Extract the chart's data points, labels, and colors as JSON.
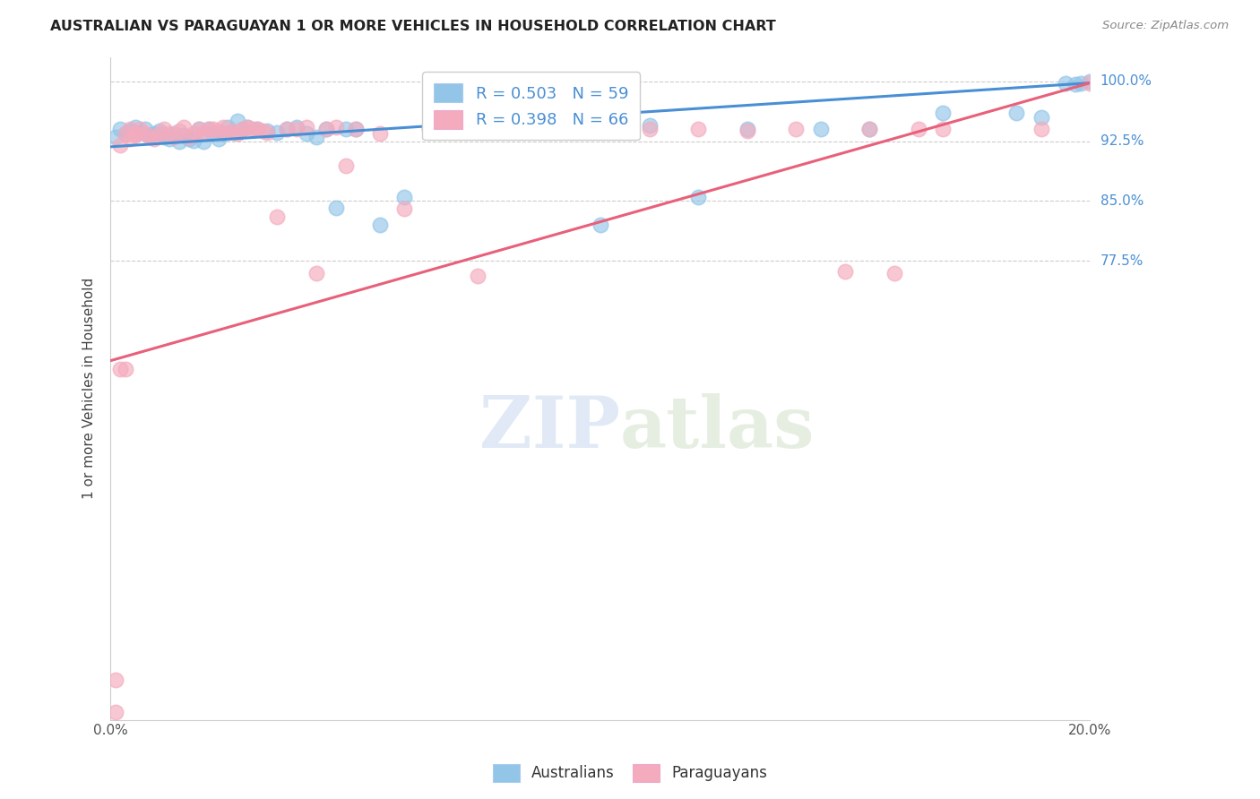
{
  "title": "AUSTRALIAN VS PARAGUAYAN 1 OR MORE VEHICLES IN HOUSEHOLD CORRELATION CHART",
  "source": "Source: ZipAtlas.com",
  "ylabel": "1 or more Vehicles in Household",
  "ytick_labels": [
    "100.0%",
    "92.5%",
    "85.0%",
    "77.5%"
  ],
  "ytick_values": [
    1.0,
    0.925,
    0.85,
    0.775
  ],
  "xmin": 0.0,
  "xmax": 0.2,
  "ymin": 0.2,
  "ymax": 1.03,
  "R_aus": 0.503,
  "N_aus": 59,
  "R_par": 0.398,
  "N_par": 66,
  "aus_color": "#92C5E8",
  "par_color": "#F4ABBE",
  "aus_line_color": "#4A8FD4",
  "par_line_color": "#E8607A",
  "legend_R_color": "#4A8FD4",
  "watermark_zip": "ZIP",
  "watermark_atlas": "atlas",
  "aus_x": [
    0.001,
    0.002,
    0.003,
    0.004,
    0.005,
    0.006,
    0.007,
    0.008,
    0.009,
    0.01,
    0.011,
    0.012,
    0.013,
    0.014,
    0.015,
    0.016,
    0.017,
    0.018,
    0.019,
    0.02,
    0.021,
    0.022,
    0.023,
    0.024,
    0.025,
    0.026,
    0.027,
    0.028,
    0.03,
    0.032,
    0.034,
    0.036,
    0.038,
    0.04,
    0.042,
    0.044,
    0.046,
    0.048,
    0.05,
    0.055,
    0.06,
    0.065,
    0.07,
    0.085,
    0.09,
    0.095,
    0.1,
    0.11,
    0.12,
    0.13,
    0.145,
    0.155,
    0.17,
    0.185,
    0.19,
    0.195,
    0.197,
    0.198,
    0.2
  ],
  "aus_y": [
    0.93,
    0.94,
    0.935,
    0.938,
    0.942,
    0.936,
    0.94,
    0.932,
    0.935,
    0.938,
    0.93,
    0.928,
    0.935,
    0.925,
    0.932,
    0.928,
    0.926,
    0.94,
    0.925,
    0.94,
    0.935,
    0.928,
    0.935,
    0.942,
    0.936,
    0.95,
    0.94,
    0.942,
    0.94,
    0.938,
    0.936,
    0.94,
    0.942,
    0.935,
    0.93,
    0.94,
    0.842,
    0.94,
    0.94,
    0.82,
    0.855,
    0.94,
    0.94,
    0.945,
    0.94,
    0.94,
    0.82,
    0.945,
    0.855,
    0.94,
    0.94,
    0.94,
    0.96,
    0.96,
    0.955,
    0.998,
    0.996,
    0.998,
    1.0
  ],
  "par_x": [
    0.001,
    0.001,
    0.002,
    0.002,
    0.003,
    0.003,
    0.004,
    0.004,
    0.005,
    0.005,
    0.006,
    0.007,
    0.008,
    0.009,
    0.01,
    0.011,
    0.012,
    0.013,
    0.014,
    0.015,
    0.016,
    0.017,
    0.018,
    0.019,
    0.02,
    0.021,
    0.022,
    0.023,
    0.024,
    0.025,
    0.026,
    0.027,
    0.028,
    0.029,
    0.03,
    0.031,
    0.032,
    0.034,
    0.036,
    0.038,
    0.04,
    0.042,
    0.044,
    0.046,
    0.048,
    0.05,
    0.055,
    0.06,
    0.065,
    0.07,
    0.075,
    0.08,
    0.09,
    0.095,
    0.1,
    0.11,
    0.12,
    0.13,
    0.14,
    0.15,
    0.155,
    0.16,
    0.165,
    0.17,
    0.19,
    0.2
  ],
  "par_y": [
    0.21,
    0.25,
    0.64,
    0.92,
    0.64,
    0.935,
    0.928,
    0.94,
    0.932,
    0.935,
    0.94,
    0.935,
    0.93,
    0.928,
    0.935,
    0.94,
    0.935,
    0.93,
    0.938,
    0.942,
    0.93,
    0.935,
    0.94,
    0.936,
    0.94,
    0.94,
    0.938,
    0.942,
    0.936,
    0.938,
    0.935,
    0.94,
    0.942,
    0.94,
    0.94,
    0.938,
    0.936,
    0.83,
    0.94,
    0.94,
    0.942,
    0.76,
    0.94,
    0.942,
    0.894,
    0.94,
    0.935,
    0.84,
    0.942,
    0.938,
    0.756,
    0.94,
    0.94,
    0.942,
    0.995,
    0.94,
    0.94,
    0.938,
    0.94,
    0.762,
    0.94,
    0.76,
    0.94,
    0.94,
    0.94,
    0.998
  ],
  "aus_line_x0": 0.0,
  "aus_line_x1": 0.2,
  "aus_line_y0": 0.918,
  "aus_line_y1": 0.998,
  "par_line_x0": 0.0,
  "par_line_x1": 0.2,
  "par_line_y0": 0.65,
  "par_line_y1": 0.998
}
